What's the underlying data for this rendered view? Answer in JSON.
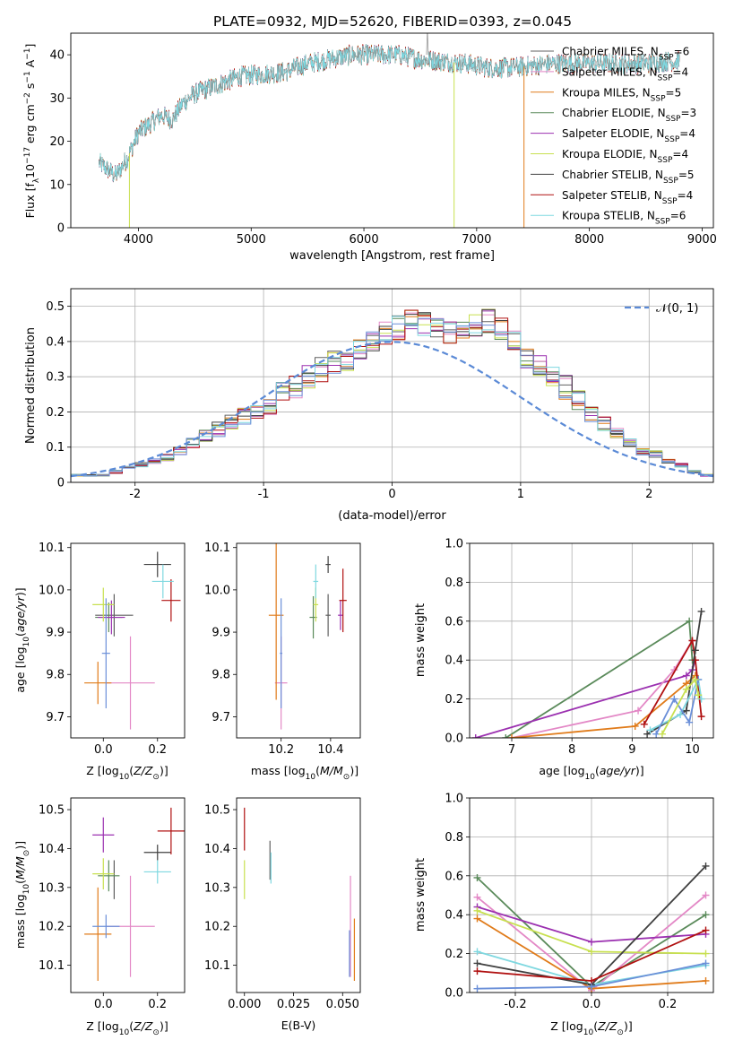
{
  "figure_title": "PLATE=0932, MJD=52620, FIBERID=0393, z=0.045",
  "colors": {
    "chabrier_miles": "#606060",
    "salpeter_miles": "#e388c6",
    "kroupa_miles": "#e07b1a",
    "chabrier_elodie": "#5a8a5a",
    "salpeter_elodie": "#9b30b0",
    "kroupa_elodie": "#c8e050",
    "chabrier_stelib": "#404040",
    "salpeter_stelib": "#b01010",
    "kroupa_stelib": "#7fd8e0",
    "extra_blue": "#6a8fd8",
    "normal_curve": "#5b8ad6"
  },
  "legend_models": [
    {
      "name": "Chabrier MILES",
      "nssp": "6",
      "color": "#606060"
    },
    {
      "name": "Salpeter MILES",
      "nssp": "4",
      "color": "#e388c6"
    },
    {
      "name": "Kroupa MILES",
      "nssp": "5",
      "color": "#e07b1a"
    },
    {
      "name": "Chabrier ELODIE",
      "nssp": "3",
      "color": "#5a8a5a"
    },
    {
      "name": "Salpeter ELODIE",
      "nssp": "4",
      "color": "#9b30b0"
    },
    {
      "name": "Kroupa ELODIE",
      "nssp": "4",
      "color": "#c8e050"
    },
    {
      "name": "Chabrier STELIB",
      "nssp": "5",
      "color": "#404040"
    },
    {
      "name": "Salpeter STELIB",
      "nssp": "4",
      "color": "#b01010"
    },
    {
      "name": "Kroupa STELIB",
      "nssp": "6",
      "color": "#7fd8e0"
    }
  ],
  "chart_data": [
    {
      "id": "spectrum",
      "type": "line",
      "xlabel": "wavelength [Angstrom, rest frame]",
      "ylabel": "Flux [f_λ10^-17 erg cm^-2 s^-1 A^-1]",
      "xlim": [
        3400,
        9100
      ],
      "ylim": [
        0,
        45
      ],
      "xticks": [
        4000,
        5000,
        6000,
        7000,
        8000,
        9000
      ],
      "yticks": [
        0,
        10,
        20,
        30,
        40
      ],
      "continuum": [
        [
          3650,
          15
        ],
        [
          3800,
          12
        ],
        [
          3900,
          16
        ],
        [
          4000,
          22
        ],
        [
          4100,
          24
        ],
        [
          4200,
          26
        ],
        [
          4300,
          25
        ],
        [
          4400,
          29
        ],
        [
          4500,
          31
        ],
        [
          4700,
          33
        ],
        [
          4900,
          35
        ],
        [
          5100,
          35.5
        ],
        [
          5300,
          36
        ],
        [
          5500,
          38
        ],
        [
          5700,
          39
        ],
        [
          5900,
          40
        ],
        [
          6100,
          40
        ],
        [
          6300,
          40
        ],
        [
          6500,
          39
        ],
        [
          6700,
          38.5
        ],
        [
          6900,
          38
        ],
        [
          7100,
          37
        ],
        [
          7300,
          37
        ],
        [
          7500,
          37.5
        ],
        [
          7700,
          38
        ],
        [
          7900,
          38
        ],
        [
          8100,
          38
        ],
        [
          8300,
          38
        ],
        [
          8500,
          38
        ],
        [
          8700,
          38.5
        ],
        [
          8800,
          38.5
        ]
      ],
      "dropouts": [
        {
          "color": "#c8e050",
          "x": [
            3920,
            6800
          ]
        },
        {
          "color": "#e07b1a",
          "x": [
            7420
          ]
        }
      ],
      "grid": false,
      "legend": "right"
    },
    {
      "id": "residuals",
      "type": "bar",
      "xlabel": "(data-model)/error",
      "ylabel": "Normed distribution",
      "xlim": [
        -2.5,
        2.5
      ],
      "ylim": [
        0,
        0.55
      ],
      "xticks": [
        -2,
        -1,
        0,
        1,
        2
      ],
      "yticks": [
        0.0,
        0.1,
        0.2,
        0.3,
        0.4,
        0.5
      ],
      "bin_edges_start": -2.5,
      "bin_width": 0.1,
      "base_values": [
        0.02,
        0.02,
        0.02,
        0.03,
        0.04,
        0.05,
        0.06,
        0.07,
        0.09,
        0.11,
        0.13,
        0.15,
        0.17,
        0.19,
        0.2,
        0.22,
        0.25,
        0.27,
        0.3,
        0.32,
        0.34,
        0.35,
        0.37,
        0.4,
        0.42,
        0.44,
        0.46,
        0.45,
        0.44,
        0.43,
        0.44,
        0.45,
        0.46,
        0.44,
        0.41,
        0.36,
        0.33,
        0.3,
        0.27,
        0.23,
        0.2,
        0.17,
        0.14,
        0.11,
        0.09,
        0.08,
        0.06,
        0.05,
        0.03,
        0.02
      ],
      "normal_label": "𝒩(0, 1)",
      "grid": true,
      "legend": "top-right"
    },
    {
      "id": "age-vs-Z",
      "type": "scatter",
      "xlabel": "Z [log10(Z/Z⊙)]",
      "ylabel": "age [log10(age/yr)]",
      "xlim": [
        -0.12,
        0.3
      ],
      "ylim": [
        9.65,
        10.11
      ],
      "xticks": [
        0.0,
        0.2
      ],
      "yticks": [
        9.7,
        9.8,
        9.9,
        10.0,
        10.1
      ],
      "points": [
        {
          "color": "#606060",
          "x": 0.04,
          "y": 9.94,
          "xerr": 0.14,
          "yerr": 0.05
        },
        {
          "color": "#e388c6",
          "x": 0.1,
          "y": 9.78,
          "xerr": 0.18,
          "yerr": 0.11
        },
        {
          "color": "#e07b1a",
          "x": -0.02,
          "y": 9.78,
          "xerr": 0.1,
          "yerr": 0.05
        },
        {
          "color": "#5a8a5a",
          "x": 0.02,
          "y": 9.935,
          "xerr": 0.1,
          "yerr": 0.035
        },
        {
          "color": "#9b30b0",
          "x": 0.03,
          "y": 9.935,
          "xerr": 0.1,
          "yerr": 0.04
        },
        {
          "color": "#c8e050",
          "x": 0.0,
          "y": 9.965,
          "xerr": 0.08,
          "yerr": 0.04
        },
        {
          "color": "#404040",
          "x": 0.2,
          "y": 10.06,
          "xerr": 0.1,
          "yerr": 0.03
        },
        {
          "color": "#b01010",
          "x": 0.25,
          "y": 9.975,
          "xerr": 0.07,
          "yerr": 0.05
        },
        {
          "color": "#7fd8e0",
          "x": 0.22,
          "y": 10.02,
          "xerr": 0.08,
          "yerr": 0.04
        },
        {
          "color": "#6a8fd8",
          "x": 0.01,
          "y": 9.85,
          "xerr": 0.03,
          "yerr": 0.13
        }
      ]
    },
    {
      "id": "age-vs-mass",
      "type": "scatter",
      "xlabel": "mass [log10(M/M⊙)]",
      "ylabel": "",
      "xlim": [
        10.02,
        10.52
      ],
      "ylim": [
        9.65,
        10.11
      ],
      "xticks": [
        10.2,
        10.4
      ],
      "yticks": [
        9.7,
        9.8,
        9.9,
        10.0,
        10.1
      ],
      "points": [
        {
          "color": "#606060",
          "x": 10.39,
          "y": 9.94,
          "xerr": 0.02,
          "yerr": 0.05
        },
        {
          "color": "#e388c6",
          "x": 10.2,
          "y": 9.78,
          "xerr": 0.05,
          "yerr": 0.11
        },
        {
          "color": "#e07b1a",
          "x": 10.18,
          "y": 9.94,
          "xerr": 0.06,
          "yerr": 0.2
        },
        {
          "color": "#5a8a5a",
          "x": 10.33,
          "y": 9.935,
          "xerr": 0.03,
          "yerr": 0.05
        },
        {
          "color": "#9b30b0",
          "x": 10.44,
          "y": 9.94,
          "xerr": 0.02,
          "yerr": 0.035
        },
        {
          "color": "#c8e050",
          "x": 10.34,
          "y": 9.965,
          "xerr": 0.02,
          "yerr": 0.04
        },
        {
          "color": "#404040",
          "x": 10.39,
          "y": 10.06,
          "xerr": 0.02,
          "yerr": 0.02
        },
        {
          "color": "#b01010",
          "x": 10.45,
          "y": 9.975,
          "xerr": 0.03,
          "yerr": 0.075
        },
        {
          "color": "#7fd8e0",
          "x": 10.34,
          "y": 10.02,
          "xerr": 0.02,
          "yerr": 0.04
        },
        {
          "color": "#6a8fd8",
          "x": 10.2,
          "y": 9.85,
          "xerr": 0.01,
          "yerr": 0.13
        }
      ]
    },
    {
      "id": "mass-weight-vs-age",
      "type": "line",
      "xlabel": "age [log10(age/yr)]",
      "ylabel": "mass weight",
      "xlim": [
        6.3,
        10.35
      ],
      "ylim": [
        0,
        1.0
      ],
      "xticks": [
        7,
        8,
        9,
        10
      ],
      "yticks": [
        0.0,
        0.2,
        0.4,
        0.6,
        0.8,
        1.0
      ],
      "series": [
        {
          "color": "#5a8a5a",
          "points": [
            [
              6.9,
              0.0
            ],
            [
              9.95,
              0.6
            ],
            [
              10.0,
              0.4
            ]
          ]
        },
        {
          "color": "#9b30b0",
          "points": [
            [
              6.4,
              0.0
            ],
            [
              9.9,
              0.32
            ],
            [
              10.0,
              0.35
            ],
            [
              10.05,
              0.4
            ]
          ]
        },
        {
          "color": "#e388c6",
          "points": [
            [
              7.0,
              0.0
            ],
            [
              9.1,
              0.14
            ],
            [
              9.7,
              0.35
            ],
            [
              10.0,
              0.5
            ]
          ]
        },
        {
          "color": "#e07b1a",
          "points": [
            [
              7.0,
              0.0
            ],
            [
              9.05,
              0.06
            ],
            [
              9.9,
              0.28
            ],
            [
              10.05,
              0.32
            ]
          ]
        },
        {
          "color": "#b01010",
          "points": [
            [
              9.2,
              0.07
            ],
            [
              10.0,
              0.5
            ],
            [
              10.05,
              0.4
            ],
            [
              10.15,
              0.11
            ]
          ]
        },
        {
          "color": "#404040",
          "points": [
            [
              9.25,
              0.02
            ],
            [
              9.9,
              0.14
            ],
            [
              10.05,
              0.45
            ],
            [
              10.15,
              0.65
            ]
          ]
        },
        {
          "color": "#7fd8e0",
          "points": [
            [
              9.3,
              0.04
            ],
            [
              9.8,
              0.12
            ],
            [
              10.1,
              0.3
            ],
            [
              10.15,
              0.2
            ]
          ]
        },
        {
          "color": "#6a8fd8",
          "points": [
            [
              9.4,
              0.02
            ],
            [
              9.7,
              0.2
            ],
            [
              9.95,
              0.08
            ],
            [
              10.1,
              0.3
            ]
          ]
        },
        {
          "color": "#c8e050",
          "points": [
            [
              9.5,
              0.02
            ],
            [
              9.9,
              0.25
            ],
            [
              10.05,
              0.3
            ],
            [
              10.1,
              0.22
            ]
          ]
        }
      ],
      "grid": true
    },
    {
      "id": "mass-vs-Z",
      "type": "scatter",
      "xlabel": "Z [log10(Z/Z⊙)]",
      "ylabel": "mass [log10(M/M⊙)]",
      "xlim": [
        -0.12,
        0.3
      ],
      "ylim": [
        10.03,
        10.53
      ],
      "xticks": [
        0.0,
        0.2
      ],
      "yticks": [
        10.1,
        10.2,
        10.3,
        10.4,
        10.5
      ],
      "points": [
        {
          "color": "#606060",
          "x": 0.04,
          "y": 10.32,
          "xerr": 0.0,
          "yerr": 0.05
        },
        {
          "color": "#e388c6",
          "x": 0.1,
          "y": 10.2,
          "xerr": 0.18,
          "yerr": 0.13
        },
        {
          "color": "#e07b1a",
          "x": -0.02,
          "y": 10.18,
          "xerr": 0.1,
          "yerr": 0.12
        },
        {
          "color": "#5a8a5a",
          "x": 0.02,
          "y": 10.33,
          "xerr": 0.08,
          "yerr": 0.04
        },
        {
          "color": "#9b30b0",
          "x": 0.0,
          "y": 10.435,
          "xerr": 0.08,
          "yerr": 0.045
        },
        {
          "color": "#c8e050",
          "x": 0.0,
          "y": 10.335,
          "xerr": 0.08,
          "yerr": 0.04
        },
        {
          "color": "#404040",
          "x": 0.2,
          "y": 10.39,
          "xerr": 0.1,
          "yerr": 0.02
        },
        {
          "color": "#b01010",
          "x": 0.25,
          "y": 10.445,
          "xerr": 0.1,
          "yerr": 0.06
        },
        {
          "color": "#7fd8e0",
          "x": 0.2,
          "y": 10.34,
          "xerr": 0.1,
          "yerr": 0.03
        },
        {
          "color": "#6a8fd8",
          "x": 0.01,
          "y": 10.2,
          "xerr": 0.1,
          "yerr": 0.03
        }
      ]
    },
    {
      "id": "mass-vs-ebv",
      "type": "scatter",
      "xlabel": "E(B-V)",
      "ylabel": "",
      "xlim": [
        -0.004,
        0.059
      ],
      "ylim": [
        10.03,
        10.53
      ],
      "xticks": [
        0.0,
        0.025,
        0.05
      ],
      "yticks": [
        10.1,
        10.2,
        10.3,
        10.4,
        10.5
      ],
      "points": [
        {
          "color": "#b01010",
          "x": 0.0,
          "y": 10.45,
          "xerr": 0.0,
          "yerr": 0.055
        },
        {
          "color": "#c8e050",
          "x": 0.0,
          "y": 10.32,
          "xerr": 0.0,
          "yerr": 0.05
        },
        {
          "color": "#606060",
          "x": 0.013,
          "y": 10.37,
          "xerr": 0.0,
          "yerr": 0.05
        },
        {
          "color": "#7fd8e0",
          "x": 0.0135,
          "y": 10.35,
          "xerr": 0.0,
          "yerr": 0.04
        },
        {
          "color": "#e388c6",
          "x": 0.054,
          "y": 10.2,
          "xerr": 0.0,
          "yerr": 0.13
        },
        {
          "color": "#6a8fd8",
          "x": 0.0535,
          "y": 10.13,
          "xerr": 0.0,
          "yerr": 0.06
        },
        {
          "color": "#e07b1a",
          "x": 0.056,
          "y": 10.14,
          "xerr": 0.0,
          "yerr": 0.08
        }
      ]
    },
    {
      "id": "mass-weight-vs-Z",
      "type": "line",
      "xlabel": "Z [log10(Z/Z⊙)]",
      "ylabel": "mass weight",
      "xlim": [
        -0.32,
        0.32
      ],
      "ylim": [
        0,
        1.0
      ],
      "xticks": [
        -0.2,
        0.0,
        0.2
      ],
      "yticks": [
        0.0,
        0.2,
        0.4,
        0.6,
        0.8,
        1.0
      ],
      "series": [
        {
          "color": "#5a8a5a",
          "points": [
            [
              -0.3,
              0.59
            ],
            [
              0.0,
              0.03
            ],
            [
              0.3,
              0.4
            ]
          ]
        },
        {
          "color": "#e388c6",
          "points": [
            [
              -0.3,
              0.49
            ],
            [
              0.0,
              0.01
            ],
            [
              0.3,
              0.5
            ]
          ]
        },
        {
          "color": "#9b30b0",
          "points": [
            [
              -0.3,
              0.44
            ],
            [
              0.0,
              0.26
            ],
            [
              0.3,
              0.3
            ]
          ]
        },
        {
          "color": "#c8e050",
          "points": [
            [
              -0.3,
              0.42
            ],
            [
              0.0,
              0.21
            ],
            [
              0.3,
              0.2
            ]
          ]
        },
        {
          "color": "#e07b1a",
          "points": [
            [
              -0.3,
              0.38
            ],
            [
              0.0,
              0.02
            ],
            [
              0.3,
              0.06
            ]
          ]
        },
        {
          "color": "#7fd8e0",
          "points": [
            [
              -0.3,
              0.21
            ],
            [
              0.0,
              0.04
            ],
            [
              0.3,
              0.14
            ]
          ]
        },
        {
          "color": "#404040",
          "points": [
            [
              -0.3,
              0.15
            ],
            [
              0.0,
              0.04
            ],
            [
              0.3,
              0.65
            ]
          ]
        },
        {
          "color": "#b01010",
          "points": [
            [
              -0.3,
              0.11
            ],
            [
              0.0,
              0.06
            ],
            [
              0.3,
              0.32
            ]
          ]
        },
        {
          "color": "#6a8fd8",
          "points": [
            [
              -0.3,
              0.02
            ],
            [
              0.0,
              0.03
            ],
            [
              0.3,
              0.15
            ]
          ]
        }
      ],
      "grid": true
    }
  ]
}
